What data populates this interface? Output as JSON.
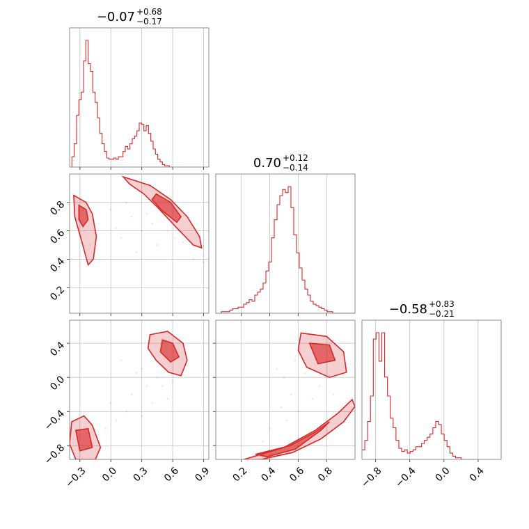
{
  "chart_data": {
    "type": "corner",
    "parameters": [
      {
        "title_value": "−0.07",
        "title_plus": "+0.68",
        "title_minus": "−0.17",
        "range": [
          -0.4,
          0.95
        ]
      },
      {
        "title_value": "0.70",
        "title_plus": "+0.12",
        "title_minus": "−0.14",
        "range": [
          0.02,
          1.0
        ]
      },
      {
        "title_value": "−0.58",
        "title_plus": "+0.83",
        "title_minus": "−0.21",
        "range": [
          -0.96,
          0.67
        ]
      }
    ],
    "ticks": {
      "p0": [
        -0.3,
        0.0,
        0.3,
        0.6,
        0.9
      ],
      "p0_labels": [
        "−0.3",
        "0.0",
        "0.3",
        "0.6",
        "0.9"
      ],
      "p1": [
        0.2,
        0.4,
        0.6,
        0.8
      ],
      "p1_labels": [
        "0.2",
        "0.4",
        "0.6",
        "0.8"
      ],
      "p2": [
        -0.8,
        -0.4,
        0.0,
        0.4
      ],
      "p2_labels": [
        "−0.8",
        "−0.4",
        "0.0",
        "0.4"
      ]
    },
    "hist1d": [
      {
        "param": 0,
        "bin_start": -0.4,
        "bin_width": 0.0225,
        "counts": [
          0,
          8,
          18,
          40,
          52,
          58,
          82,
          98,
          80,
          74,
          58,
          50,
          38,
          26,
          18,
          12,
          7,
          6,
          6,
          7,
          6,
          8,
          8,
          12,
          16,
          14,
          18,
          22,
          24,
          28,
          34,
          33,
          28,
          32,
          26,
          20,
          14,
          10,
          6,
          4,
          2,
          1,
          1,
          0
        ]
      },
      {
        "param": 1,
        "bin_start": 0.02,
        "bin_width": 0.0196,
        "counts": [
          0,
          0,
          1,
          1,
          1,
          2,
          3,
          3,
          4,
          4,
          6,
          7,
          9,
          8,
          12,
          14,
          16,
          20,
          28,
          34,
          50,
          62,
          72,
          78,
          82,
          80,
          84,
          70,
          52,
          40,
          30,
          22,
          16,
          12,
          8,
          6,
          5,
          4,
          3,
          2,
          1,
          1,
          0,
          0,
          0,
          0,
          0,
          0,
          0,
          0
        ]
      },
      {
        "param": 2,
        "bin_start": -0.96,
        "bin_width": 0.0332,
        "counts": [
          6,
          12,
          24,
          40,
          76,
          80,
          62,
          80,
          52,
          40,
          26,
          20,
          12,
          7,
          5,
          6,
          4,
          5,
          6,
          8,
          8,
          10,
          12,
          14,
          16,
          20,
          24,
          22,
          16,
          12,
          8,
          4,
          2,
          1,
          1,
          0,
          0,
          0,
          0,
          0
        ]
      }
    ],
    "contours2d": [
      {
        "x_param": 0,
        "y_param": 1,
        "outer": [
          [
            [
              -0.36,
              0.85
            ],
            [
              -0.24,
              0.8
            ],
            [
              -0.18,
              0.72
            ],
            [
              -0.14,
              0.56
            ],
            [
              -0.17,
              0.4
            ],
            [
              -0.22,
              0.36
            ],
            [
              -0.28,
              0.52
            ],
            [
              -0.35,
              0.7
            ]
          ],
          [
            [
              0.12,
              0.98
            ],
            [
              0.38,
              0.92
            ],
            [
              0.58,
              0.82
            ],
            [
              0.74,
              0.7
            ],
            [
              0.86,
              0.56
            ],
            [
              0.88,
              0.48
            ],
            [
              0.8,
              0.5
            ],
            [
              0.64,
              0.62
            ],
            [
              0.46,
              0.76
            ],
            [
              0.32,
              0.86
            ],
            [
              0.18,
              0.93
            ]
          ]
        ],
        "inner": [
          [
            [
              -0.31,
              0.78
            ],
            [
              -0.24,
              0.75
            ],
            [
              -0.22,
              0.68
            ],
            [
              -0.27,
              0.63
            ],
            [
              -0.31,
              0.68
            ]
          ],
          [
            [
              0.44,
              0.86
            ],
            [
              0.58,
              0.8
            ],
            [
              0.68,
              0.7
            ],
            [
              0.64,
              0.66
            ],
            [
              0.5,
              0.74
            ],
            [
              0.4,
              0.82
            ]
          ]
        ],
        "samples": [
          [
            -0.3,
            0.7
          ],
          [
            -0.25,
            0.6
          ],
          [
            -0.2,
            0.5
          ],
          [
            0.05,
            0.62
          ],
          [
            0.1,
            0.55
          ],
          [
            0.2,
            0.7
          ],
          [
            0.3,
            0.6
          ],
          [
            0.4,
            0.65
          ],
          [
            0.55,
            0.6
          ],
          [
            0.62,
            0.55
          ],
          [
            0.7,
            0.52
          ],
          [
            0.15,
            0.8
          ],
          [
            0.0,
            0.75
          ],
          [
            0.8,
            0.4
          ],
          [
            0.9,
            0.38
          ],
          [
            0.25,
            0.45
          ],
          [
            0.45,
            0.5
          ],
          [
            0.35,
            0.72
          ]
        ]
      },
      {
        "x_param": 0,
        "y_param": 2,
        "outer": [
          [
            [
              -0.38,
              -0.52
            ],
            [
              -0.26,
              -0.45
            ],
            [
              -0.18,
              -0.56
            ],
            [
              -0.1,
              -0.82
            ],
            [
              -0.15,
              -0.96
            ],
            [
              -0.34,
              -0.96
            ],
            [
              -0.4,
              -0.78
            ]
          ],
          [
            [
              0.38,
              0.5
            ],
            [
              0.55,
              0.54
            ],
            [
              0.7,
              0.4
            ],
            [
              0.74,
              0.2
            ],
            [
              0.68,
              0.02
            ],
            [
              0.56,
              0.06
            ],
            [
              0.44,
              0.2
            ],
            [
              0.36,
              0.34
            ]
          ]
        ],
        "inner": [
          [
            [
              -0.34,
              -0.62
            ],
            [
              -0.22,
              -0.6
            ],
            [
              -0.18,
              -0.82
            ],
            [
              -0.3,
              -0.86
            ]
          ],
          [
            [
              0.5,
              0.44
            ],
            [
              0.6,
              0.4
            ],
            [
              0.66,
              0.24
            ],
            [
              0.58,
              0.18
            ],
            [
              0.48,
              0.3
            ]
          ]
        ],
        "samples": [
          [
            0.3,
            0.1
          ],
          [
            0.35,
            -0.1
          ],
          [
            0.4,
            -0.3
          ],
          [
            0.45,
            0.0
          ],
          [
            0.25,
            0.05
          ],
          [
            0.2,
            -0.2
          ],
          [
            0.5,
            -0.1
          ],
          [
            0.6,
            -0.05
          ],
          [
            0.15,
            -0.4
          ],
          [
            0.05,
            -0.5
          ],
          [
            -0.05,
            -0.6
          ],
          [
            0.0,
            -0.3
          ],
          [
            0.1,
            0.2
          ],
          [
            0.55,
            -0.25
          ],
          [
            0.3,
            -0.45
          ]
        ]
      },
      {
        "x_param": 1,
        "y_param": 2,
        "outer": [
          [
            [
              0.62,
              0.52
            ],
            [
              0.8,
              0.48
            ],
            [
              0.92,
              0.3
            ],
            [
              0.94,
              0.06
            ],
            [
              0.82,
              0.0
            ],
            [
              0.66,
              0.12
            ],
            [
              0.6,
              0.32
            ]
          ],
          [
            [
              0.2,
              -0.97
            ],
            [
              0.5,
              -0.82
            ],
            [
              0.72,
              -0.62
            ],
            [
              0.88,
              -0.42
            ],
            [
              0.98,
              -0.26
            ],
            [
              1.0,
              -0.34
            ],
            [
              0.92,
              -0.52
            ],
            [
              0.76,
              -0.72
            ],
            [
              0.56,
              -0.88
            ],
            [
              0.34,
              -0.96
            ]
          ]
        ],
        "inner": [
          [
            [
              0.68,
              0.4
            ],
            [
              0.82,
              0.38
            ],
            [
              0.86,
              0.2
            ],
            [
              0.74,
              0.16
            ]
          ],
          [
            [
              0.3,
              -0.9
            ],
            [
              0.54,
              -0.8
            ],
            [
              0.72,
              -0.64
            ],
            [
              0.82,
              -0.52
            ],
            [
              0.76,
              -0.62
            ],
            [
              0.58,
              -0.84
            ],
            [
              0.38,
              -0.93
            ]
          ]
        ],
        "samples": [
          [
            0.5,
            0.0
          ],
          [
            0.55,
            -0.2
          ],
          [
            0.6,
            -0.4
          ],
          [
            0.45,
            0.1
          ],
          [
            0.65,
            0.05
          ],
          [
            0.7,
            -0.25
          ],
          [
            0.4,
            -0.6
          ],
          [
            0.48,
            -0.35
          ],
          [
            0.75,
            -0.1
          ],
          [
            0.58,
            0.2
          ],
          [
            0.35,
            -0.75
          ],
          [
            0.85,
            -0.2
          ],
          [
            0.52,
            -0.5
          ]
        ]
      }
    ]
  }
}
